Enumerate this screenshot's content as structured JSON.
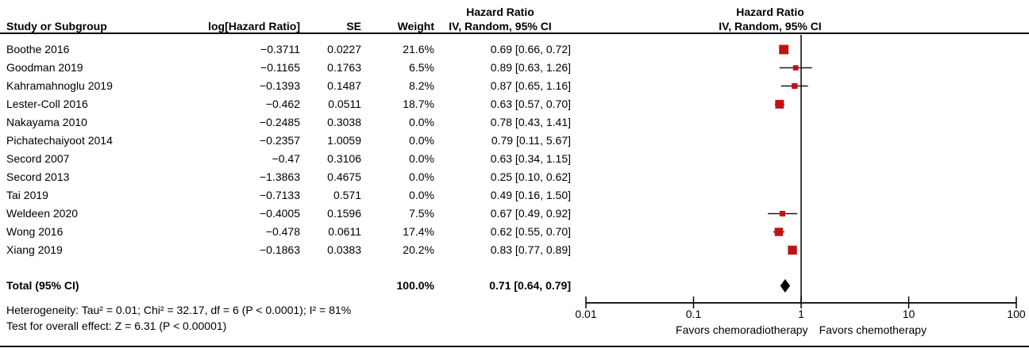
{
  "colors": {
    "marker": "#BF1212",
    "ci_line": "#1a1a1a",
    "diamond": "#000000",
    "rule": "#000000"
  },
  "header": {
    "study_col": "Study or Subgroup",
    "loghr_col": "log[Hazard Ratio]",
    "se_col": "SE",
    "weight_col": "Weight",
    "ci_col_line1": "Hazard Ratio",
    "ci_col_line2": "IV, Random, 95% CI",
    "plot_col_line1": "Hazard Ratio",
    "plot_col_line2": "IV, Random, 95% CI"
  },
  "chart_data": {
    "type": "forest",
    "effect_measure": "Hazard Ratio",
    "model": "IV, Random, 95% CI",
    "scale": "log",
    "axis": {
      "ticks": [
        "0.01",
        "0.1",
        "1",
        "10",
        "100"
      ],
      "tick_values": [
        0.01,
        0.1,
        1,
        10,
        100
      ],
      "min": 0.01,
      "max": 100
    },
    "studies": [
      {
        "name": "Boothe 2016",
        "log_hr": "−0.3711",
        "se": "0.0227",
        "weight": "21.6%",
        "weight_pct": 21.6,
        "ci_text": "0.69 [0.66, 0.72]",
        "hr": 0.69,
        "lo": 0.66,
        "hi": 0.72
      },
      {
        "name": "Goodman 2019",
        "log_hr": "−0.1165",
        "se": "0.1763",
        "weight": "6.5%",
        "weight_pct": 6.5,
        "ci_text": "0.89 [0.63, 1.26]",
        "hr": 0.89,
        "lo": 0.63,
        "hi": 1.26
      },
      {
        "name": "Kahramahnoglu 2019",
        "log_hr": "−0.1393",
        "se": "0.1487",
        "weight": "8.2%",
        "weight_pct": 8.2,
        "ci_text": "0.87 [0.65, 1.16]",
        "hr": 0.87,
        "lo": 0.65,
        "hi": 1.16
      },
      {
        "name": "Lester-Coll 2016",
        "log_hr": "−0.462",
        "se": "0.0511",
        "weight": "18.7%",
        "weight_pct": 18.7,
        "ci_text": "0.63 [0.57, 0.70]",
        "hr": 0.63,
        "lo": 0.57,
        "hi": 0.7
      },
      {
        "name": "Nakayama 2010",
        "log_hr": "−0.2485",
        "se": "0.3038",
        "weight": "0.0%",
        "weight_pct": 0,
        "ci_text": "0.78 [0.43, 1.41]",
        "hr": 0.78,
        "lo": 0.43,
        "hi": 1.41
      },
      {
        "name": "Pichatechaiyoot 2014",
        "log_hr": "−0.2357",
        "se": "1.0059",
        "weight": "0.0%",
        "weight_pct": 0,
        "ci_text": "0.79 [0.11, 5.67]",
        "hr": 0.79,
        "lo": 0.11,
        "hi": 5.67
      },
      {
        "name": "Secord 2007",
        "log_hr": "−0.47",
        "se": "0.3106",
        "weight": "0.0%",
        "weight_pct": 0,
        "ci_text": "0.63 [0.34, 1.15]",
        "hr": 0.63,
        "lo": 0.34,
        "hi": 1.15
      },
      {
        "name": "Secord 2013",
        "log_hr": "−1.3863",
        "se": "0.4675",
        "weight": "0.0%",
        "weight_pct": 0,
        "ci_text": "0.25 [0.10, 0.62]",
        "hr": 0.25,
        "lo": 0.1,
        "hi": 0.62
      },
      {
        "name": "Tai 2019",
        "log_hr": "−0.7133",
        "se": "0.571",
        "weight": "0.0%",
        "weight_pct": 0,
        "ci_text": "0.49 [0.16, 1.50]",
        "hr": 0.49,
        "lo": 0.16,
        "hi": 1.5
      },
      {
        "name": "Weldeen 2020",
        "log_hr": "−0.4005",
        "se": "0.1596",
        "weight": "7.5%",
        "weight_pct": 7.5,
        "ci_text": "0.67 [0.49, 0.92]",
        "hr": 0.67,
        "lo": 0.49,
        "hi": 0.92
      },
      {
        "name": "Wong 2016",
        "log_hr": "−0.478",
        "se": "0.0611",
        "weight": "17.4%",
        "weight_pct": 17.4,
        "ci_text": "0.62 [0.55, 0.70]",
        "hr": 0.62,
        "lo": 0.55,
        "hi": 0.7
      },
      {
        "name": "Xiang 2019",
        "log_hr": "−0.1863",
        "se": "0.0383",
        "weight": "20.2%",
        "weight_pct": 20.2,
        "ci_text": "0.83 [0.77, 0.89]",
        "hr": 0.83,
        "lo": 0.77,
        "hi": 0.89
      }
    ],
    "total": {
      "label": "Total (95% CI)",
      "weight": "100.0%",
      "ci_text": "0.71 [0.64, 0.79]",
      "hr": 0.71,
      "lo": 0.64,
      "hi": 0.79
    },
    "heterogeneity": "Heterogeneity: Tau² = 0.01; Chi² = 32.17, df = 6 (P < 0.0001); I² = 81%",
    "overall_effect": "Test for overall effect: Z = 6.31 (P < 0.00001)",
    "favors_left": "Favors chemoradiotherapy",
    "favors_right": "Favors chemotherapy"
  }
}
